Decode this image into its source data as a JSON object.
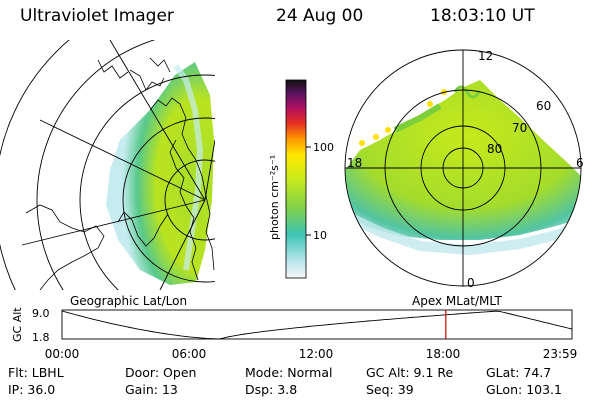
{
  "header": {
    "instrument": "Ultraviolet Imager",
    "date": "24 Aug 00",
    "time": "18:03:10 UT"
  },
  "colorbar": {
    "unit_label": "photon cm⁻²s⁻¹",
    "ticks": [
      "100",
      "10"
    ]
  },
  "polar_plot": {
    "mlt_labels": [
      "12",
      "18",
      "6",
      "0"
    ],
    "mlat_labels": [
      "60",
      "70",
      "80"
    ]
  },
  "map_captions": {
    "left": "Geographic Lat/Lon",
    "right": "Apex MLat/MLT"
  },
  "altitude_strip": {
    "axis_label": "GC Alt",
    "y_ticks": [
      "9.0",
      "1.8"
    ],
    "x_ticks": [
      "00:00",
      "06:00",
      "12:00",
      "18:00",
      "23:59"
    ],
    "marker_time": "18:03",
    "line_color": "#000000",
    "marker_color": "#cc0000"
  },
  "info": {
    "row1": [
      {
        "label": "Flt:",
        "value": "LBHL"
      },
      {
        "label": "Door:",
        "value": "Open"
      },
      {
        "label": "Mode:",
        "value": "Normal"
      },
      {
        "label": "GC Alt:",
        "value": "9.1 Re"
      },
      {
        "label": "GLat:",
        "value": "74.7"
      }
    ],
    "row2": [
      {
        "label": "IP:",
        "value": "36.0"
      },
      {
        "label": "Gain:",
        "value": "13"
      },
      {
        "label": "Dsp:",
        "value": "3.8"
      },
      {
        "label": "Seq:",
        "value": "39"
      },
      {
        "label": "GLon:",
        "value": "103.1"
      }
    ]
  },
  "colors": {
    "aurora_bright": "#9fe02a",
    "aurora_mid": "#c8ec1c",
    "aurora_edge": "#3cc4b4",
    "aurora_dim": "#bfe8ee"
  }
}
